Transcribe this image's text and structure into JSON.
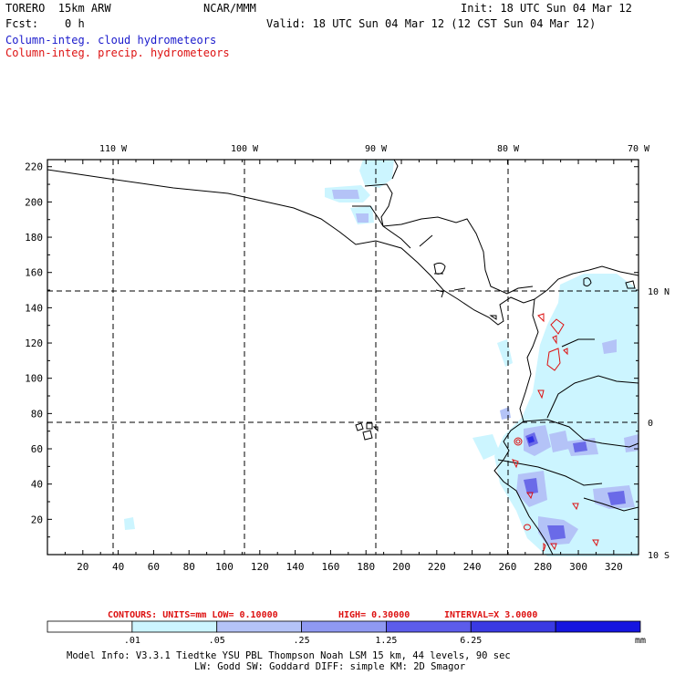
{
  "header": {
    "model": "TORERO  15km ARW",
    "org": "NCAR/MMM",
    "init": "Init: 18 UTC Sun 04 Mar 12",
    "fcst": "Fcst:    0 h",
    "valid": "Valid: 18 UTC Sun 04 Mar 12 (12 CST Sun 04 Mar 12)",
    "field1": "Column-integ. cloud hydrometeors",
    "field2": "Column-integ. precip. hydrometeors"
  },
  "map": {
    "lon_labels": [
      "110 W",
      "100 W",
      "90 W",
      "80 W",
      "70 W"
    ],
    "lat_labels": [
      "10 N",
      "0",
      "10 S"
    ],
    "x_ticks": [
      "20",
      "40",
      "60",
      "80",
      "100",
      "120",
      "140",
      "160",
      "180",
      "200",
      "220",
      "240",
      "260",
      "280",
      "300",
      "320"
    ],
    "y_ticks": [
      "20",
      "40",
      "60",
      "80",
      "100",
      "120",
      "140",
      "160",
      "180",
      "200",
      "220"
    ],
    "cloud_color": "#ccf5ff",
    "mid_color": "#8f99f2",
    "deep_color": "#3030e6",
    "contour_color": "#dd1111",
    "coast_color": "#000000"
  },
  "contours": {
    "units": "CONTOURS:  UNITS=mm  LOW= 0.10000",
    "high": "HIGH= 0.30000",
    "interval": "INTERVAL=X  3.0000"
  },
  "colorbar": {
    "labels": [
      ".01",
      ".05",
      ".25",
      "1.25",
      "6.25"
    ],
    "unit": "mm",
    "colors": [
      "#ffffff",
      "#ccf5ff",
      "#b4c3f7",
      "#8f99f2",
      "#5c5ceb",
      "#3a3ae3",
      "#1515e0"
    ]
  },
  "footer": {
    "line1": "Model Info: V3.3.1   Tiedtke YSU PBL  Thompson    Noah LSM  15 km,   44 levels,   90 sec",
    "line2": "LW: Godd SW: Goddard DIFF: simple KM: 2D Smagor"
  }
}
